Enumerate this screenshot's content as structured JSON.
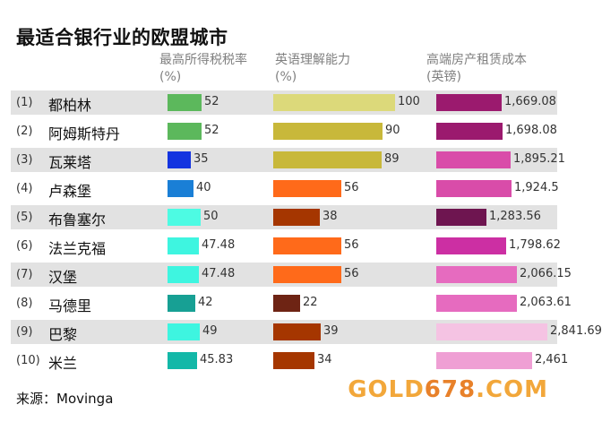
{
  "title": "最适合银行业的欧盟城市",
  "source": "来源：Movinga",
  "watermark": {
    "prefix": "GOLD",
    "number": "678",
    "suffix": ".COM"
  },
  "chart_data": {
    "type": "table",
    "columns": [
      {
        "key": "tax",
        "line1": "最高所得税税率",
        "line2": "(%)",
        "max": 100
      },
      {
        "key": "english",
        "line1": "英语理解能力",
        "line2": "(%)",
        "max": 100
      },
      {
        "key": "rent",
        "line1": "高端房产租赁成本",
        "line2": "(英镑)",
        "max": 2841.69
      }
    ],
    "rows": [
      {
        "index": "(1)",
        "city": "都柏林",
        "tax": 52,
        "tax_label": "52",
        "english": 100,
        "english_label": "100",
        "rent": 1669.08,
        "rent_label": "1,669.08",
        "colors": [
          "#5cb85c",
          "#dcd97a",
          "#9b1a6e"
        ]
      },
      {
        "index": "(2)",
        "city": "阿姆斯特丹",
        "tax": 52,
        "tax_label": "52",
        "english": 90,
        "english_label": "90",
        "rent": 1698.08,
        "rent_label": "1,698.08",
        "colors": [
          "#5cb85c",
          "#c8b83a",
          "#9b1a6e"
        ]
      },
      {
        "index": "(3)",
        "city": "瓦莱塔",
        "tax": 35,
        "tax_label": "35",
        "english": 89,
        "english_label": "89",
        "rent": 1895.21,
        "rent_label": "1,895.21",
        "colors": [
          "#1334e0",
          "#c8b83a",
          "#d94ca9"
        ]
      },
      {
        "index": "(4)",
        "city": "卢森堡",
        "tax": 40,
        "tax_label": "40",
        "english": 56,
        "english_label": "56",
        "rent": 1924.5,
        "rent_label": "1,924.5",
        "colors": [
          "#1a7fd6",
          "#ff6a1a",
          "#d94ca9"
        ]
      },
      {
        "index": "(5)",
        "city": "布鲁塞尔",
        "tax": 50,
        "tax_label": "50",
        "english": 38,
        "english_label": "38",
        "rent": 1283.56,
        "rent_label": "1,283.56",
        "colors": [
          "#4dfbe3",
          "#a53600",
          "#6e1550"
        ]
      },
      {
        "index": "(6)",
        "city": "法兰克福",
        "tax": 47.48,
        "tax_label": "47.48",
        "english": 56,
        "english_label": "56",
        "rent": 1798.62,
        "rent_label": "1,798.62",
        "colors": [
          "#3ef5e0",
          "#ff6a1a",
          "#cc2fa3"
        ]
      },
      {
        "index": "(7)",
        "city": "汉堡",
        "tax": 47.48,
        "tax_label": "47.48",
        "english": 56,
        "english_label": "56",
        "rent": 2066.15,
        "rent_label": "2,066.15",
        "colors": [
          "#3ef5e0",
          "#ff6a1a",
          "#e66bbf"
        ]
      },
      {
        "index": "(8)",
        "city": "马德里",
        "tax": 42,
        "tax_label": "42",
        "english": 22,
        "english_label": "22",
        "rent": 2063.61,
        "rent_label": "2,063.61",
        "colors": [
          "#17a094",
          "#6e2414",
          "#e66bbf"
        ]
      },
      {
        "index": "(9)",
        "city": "巴黎",
        "tax": 49,
        "tax_label": "49",
        "english": 39,
        "english_label": "39",
        "rent": 2841.69,
        "rent_label": "2,841.69",
        "colors": [
          "#3ef5e0",
          "#a53600",
          "#f5c3e3"
        ]
      },
      {
        "index": "(10)",
        "city": "米兰",
        "tax": 45.83,
        "tax_label": "45.83",
        "english": 34,
        "english_label": "34",
        "rent": 2461,
        "rent_label": "2,461",
        "colors": [
          "#13b8a8",
          "#a53600",
          "#ef9fd4"
        ]
      }
    ]
  }
}
